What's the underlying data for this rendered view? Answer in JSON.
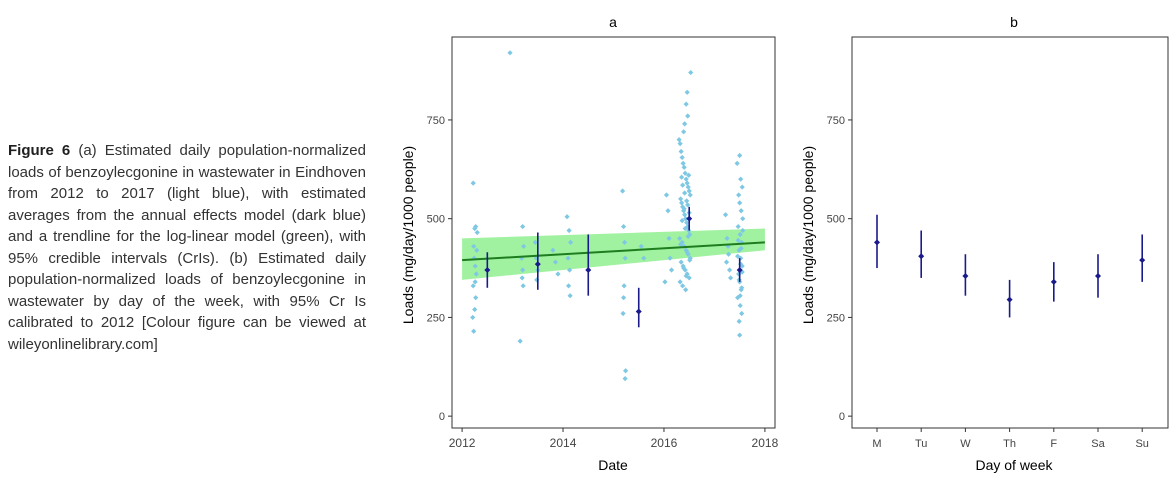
{
  "caption": {
    "label": "Figure 6",
    "text": " (a) Estimated daily population-normalized loads of benzoylecgonine in wastewater in Eindhoven from 2012 to 2017 (light blue), with estimated averages from the annual effects model (dark blue) and a trendline for the log-linear model (green), with 95% credible intervals (CrIs). (b) Estimated daily population-normalized loads of benzoylecgonine in wastewater by day of the week, with 95% Cr Is calibrated to 2012 [Colour figure can be viewed at wileyonlinelibrary.com]"
  },
  "colors": {
    "points": "#7ec8e3",
    "estimates": "#1a1a8c",
    "trend": "#1e7d1e",
    "band": "#8ff08f"
  },
  "chart_data": [
    {
      "type": "scatter",
      "title": "a",
      "xlabel": "Date",
      "ylabel": "Loads (mg/day/1000 people)",
      "xlim": [
        2011.8,
        2018.2
      ],
      "ylim": [
        -30,
        960
      ],
      "xticks": [
        2012,
        2014,
        2016,
        2018
      ],
      "yticks": [
        0,
        250,
        500,
        750
      ],
      "grid": false,
      "points": [
        [
          2012.22,
          590
        ],
        [
          2012.25,
          475
        ],
        [
          2012.27,
          480
        ],
        [
          2012.23,
          430
        ],
        [
          2012.24,
          400
        ],
        [
          2012.26,
          380
        ],
        [
          2012.28,
          360
        ],
        [
          2012.22,
          330
        ],
        [
          2012.27,
          300
        ],
        [
          2012.25,
          270
        ],
        [
          2012.21,
          250
        ],
        [
          2012.23,
          215
        ],
        [
          2012.3,
          465
        ],
        [
          2012.29,
          420
        ],
        [
          2012.26,
          340
        ],
        [
          2012.95,
          920
        ],
        [
          2013.15,
          190
        ],
        [
          2013.2,
          480
        ],
        [
          2013.22,
          430
        ],
        [
          2013.18,
          400
        ],
        [
          2013.2,
          370
        ],
        [
          2013.19,
          350
        ],
        [
          2013.21,
          330
        ],
        [
          2013.45,
          440
        ],
        [
          2013.47,
          400
        ],
        [
          2013.5,
          370
        ],
        [
          2013.48,
          345
        ],
        [
          2013.8,
          420
        ],
        [
          2013.85,
          390
        ],
        [
          2013.9,
          360
        ],
        [
          2014.08,
          505
        ],
        [
          2014.12,
          470
        ],
        [
          2014.15,
          440
        ],
        [
          2014.1,
          400
        ],
        [
          2014.13,
          370
        ],
        [
          2014.11,
          330
        ],
        [
          2014.14,
          305
        ],
        [
          2015.18,
          570
        ],
        [
          2015.2,
          480
        ],
        [
          2015.22,
          440
        ],
        [
          2015.23,
          400
        ],
        [
          2015.21,
          330
        ],
        [
          2015.2,
          300
        ],
        [
          2015.19,
          260
        ],
        [
          2015.24,
          115
        ],
        [
          2015.23,
          95
        ],
        [
          2015.55,
          430
        ],
        [
          2015.6,
          400
        ],
        [
          2016.02,
          340
        ],
        [
          2016.05,
          560
        ],
        [
          2016.08,
          520
        ],
        [
          2016.1,
          450
        ],
        [
          2016.12,
          400
        ],
        [
          2016.15,
          370
        ],
        [
          2016.3,
          700
        ],
        [
          2016.32,
          690
        ],
        [
          2016.34,
          670
        ],
        [
          2016.36,
          655
        ],
        [
          2016.38,
          640
        ],
        [
          2016.4,
          630
        ],
        [
          2016.42,
          615
        ],
        [
          2016.44,
          600
        ],
        [
          2016.46,
          590
        ],
        [
          2016.48,
          580
        ],
        [
          2016.5,
          570
        ],
        [
          2016.52,
          560
        ],
        [
          2016.33,
          550
        ],
        [
          2016.35,
          540
        ],
        [
          2016.37,
          530
        ],
        [
          2016.39,
          520
        ],
        [
          2016.41,
          510
        ],
        [
          2016.43,
          500
        ],
        [
          2016.45,
          490
        ],
        [
          2016.47,
          480
        ],
        [
          2016.49,
          470
        ],
        [
          2016.51,
          460
        ],
        [
          2016.31,
          450
        ],
        [
          2016.36,
          440
        ],
        [
          2016.4,
          430
        ],
        [
          2016.44,
          420
        ],
        [
          2016.48,
          410
        ],
        [
          2016.52,
          400
        ],
        [
          2016.34,
          390
        ],
        [
          2016.38,
          380
        ],
        [
          2016.42,
          370
        ],
        [
          2016.46,
          360
        ],
        [
          2016.5,
          350
        ],
        [
          2016.32,
          340
        ],
        [
          2016.37,
          330
        ],
        [
          2016.43,
          320
        ],
        [
          2016.47,
          760
        ],
        [
          2016.44,
          790
        ],
        [
          2016.46,
          820
        ],
        [
          2016.53,
          870
        ],
        [
          2016.41,
          740
        ],
        [
          2016.39,
          720
        ],
        [
          2016.49,
          610
        ],
        [
          2016.35,
          605
        ],
        [
          2016.45,
          545
        ],
        [
          2016.4,
          525
        ],
        [
          2016.5,
          515
        ],
        [
          2016.36,
          495
        ],
        [
          2016.42,
          475
        ],
        [
          2016.48,
          455
        ],
        [
          2016.33,
          435
        ],
        [
          2016.46,
          415
        ],
        [
          2016.51,
          395
        ],
        [
          2016.39,
          375
        ],
        [
          2016.44,
          355
        ],
        [
          2016.37,
          585
        ],
        [
          2016.41,
          565
        ],
        [
          2016.47,
          535
        ],
        [
          2017.22,
          510
        ],
        [
          2017.25,
          450
        ],
        [
          2017.28,
          410
        ],
        [
          2017.3,
          370
        ],
        [
          2017.32,
          350
        ],
        [
          2017.24,
          390
        ],
        [
          2017.27,
          430
        ],
        [
          2017.45,
          640
        ],
        [
          2017.5,
          660
        ],
        [
          2017.52,
          600
        ],
        [
          2017.55,
          580
        ],
        [
          2017.48,
          560
        ],
        [
          2017.5,
          540
        ],
        [
          2017.53,
          520
        ],
        [
          2017.56,
          500
        ],
        [
          2017.47,
          480
        ],
        [
          2017.51,
          460
        ],
        [
          2017.54,
          440
        ],
        [
          2017.49,
          420
        ],
        [
          2017.52,
          400
        ],
        [
          2017.55,
          380
        ],
        [
          2017.48,
          360
        ],
        [
          2017.5,
          340
        ],
        [
          2017.53,
          320
        ],
        [
          2017.46,
          300
        ],
        [
          2017.51,
          280
        ],
        [
          2017.54,
          260
        ],
        [
          2017.49,
          240
        ],
        [
          2017.5,
          205
        ],
        [
          2017.56,
          470
        ],
        [
          2017.47,
          445
        ],
        [
          2017.53,
          425
        ],
        [
          2017.46,
          405
        ],
        [
          2017.52,
          385
        ],
        [
          2017.55,
          365
        ],
        [
          2017.49,
          345
        ],
        [
          2017.54,
          325
        ],
        [
          2017.51,
          305
        ]
      ],
      "estimates": [
        {
          "x": 2012.5,
          "y": 370,
          "lo": 325,
          "hi": 415
        },
        {
          "x": 2013.5,
          "y": 385,
          "lo": 320,
          "hi": 465
        },
        {
          "x": 2014.5,
          "y": 370,
          "lo": 305,
          "hi": 460
        },
        {
          "x": 2015.5,
          "y": 265,
          "lo": 225,
          "hi": 325
        },
        {
          "x": 2016.5,
          "y": 500,
          "lo": 470,
          "hi": 530
        },
        {
          "x": 2017.5,
          "y": 370,
          "lo": 340,
          "hi": 400
        }
      ],
      "trend": {
        "x": [
          2012,
          2018
        ],
        "y": [
          395,
          440
        ],
        "lo": [
          345,
          420
        ],
        "hi": [
          450,
          475
        ]
      }
    },
    {
      "type": "scatter",
      "title": "b",
      "xlabel": "Day of week",
      "ylabel": "Loads (mg/day/1000 people)",
      "ylim": [
        -30,
        960
      ],
      "yticks": [
        0,
        250,
        500,
        750
      ],
      "grid": false,
      "categories": [
        "M",
        "Tu",
        "W",
        "Th",
        "F",
        "Sa",
        "Su"
      ],
      "values": [
        440,
        405,
        355,
        295,
        340,
        355,
        395
      ],
      "lo": [
        375,
        350,
        305,
        250,
        290,
        300,
        340
      ],
      "hi": [
        510,
        470,
        410,
        345,
        390,
        410,
        460
      ]
    }
  ]
}
